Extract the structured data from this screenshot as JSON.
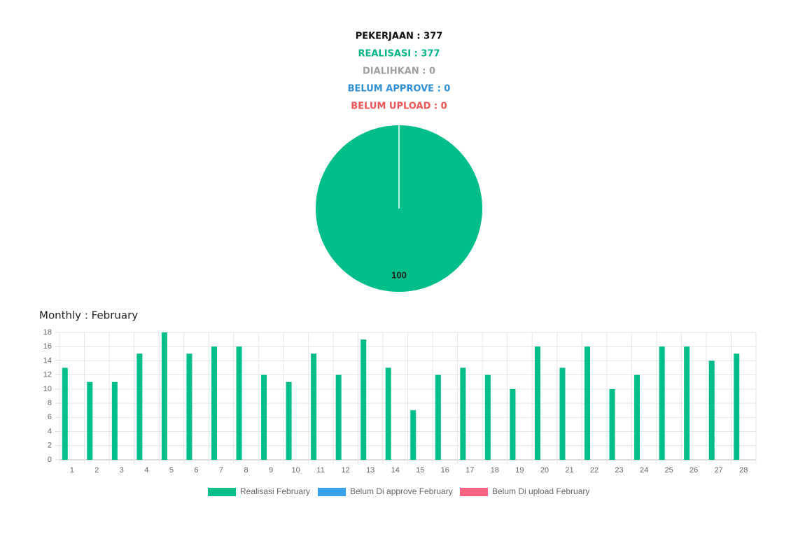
{
  "summary": [
    {
      "text": "PEKERJAAN : 377",
      "color": "#111111"
    },
    {
      "text": "REALISASI : 377",
      "color": "#00b386"
    },
    {
      "text": "DIALIHKAN : 0",
      "color": "#a0a0a0"
    },
    {
      "text": "BELUM APPROVE : 0",
      "color": "#2e8fd6"
    },
    {
      "text": "BELUM UPLOAD : 0",
      "color": "#f05454"
    }
  ],
  "chart_data": [
    {
      "type": "pie",
      "values": [
        100
      ],
      "colors": [
        "#00be8a"
      ]
    },
    {
      "type": "bar",
      "title": "Monthly : February",
      "categories": [
        "1",
        "2",
        "3",
        "4",
        "5",
        "6",
        "7",
        "8",
        "9",
        "10",
        "11",
        "12",
        "13",
        "14",
        "15",
        "16",
        "17",
        "18",
        "19",
        "20",
        "21",
        "22",
        "23",
        "24",
        "25",
        "26",
        "27",
        "28"
      ],
      "series": [
        {
          "name": "Realisasi February",
          "color": "#00be8a",
          "values": [
            13,
            11,
            11,
            15,
            18,
            15,
            16,
            16,
            12,
            11,
            15,
            12,
            17,
            13,
            7,
            12,
            13,
            12,
            10,
            16,
            13,
            16,
            10,
            12,
            16,
            16,
            14,
            15
          ]
        },
        {
          "name": "Belum Di approve February",
          "color": "#36a2eb",
          "values": [
            0,
            0,
            0,
            0,
            0,
            0,
            0,
            0,
            0,
            0,
            0,
            0,
            0,
            0,
            0,
            0,
            0,
            0,
            0,
            0,
            0,
            0,
            0,
            0,
            0,
            0,
            0,
            0
          ]
        },
        {
          "name": "Belum Di upload February",
          "color": "#ff6384",
          "values": [
            0,
            0,
            0,
            0,
            0,
            0,
            0,
            0,
            0,
            0,
            0,
            0,
            0,
            0,
            0,
            0,
            0,
            0,
            0,
            0,
            0,
            0,
            0,
            0,
            0,
            0,
            0,
            0
          ]
        }
      ],
      "ylim": [
        0,
        18
      ],
      "yticks": [
        0,
        2,
        4,
        6,
        8,
        10,
        12,
        14,
        16,
        18
      ],
      "grid": true,
      "legend": "bottom"
    }
  ]
}
